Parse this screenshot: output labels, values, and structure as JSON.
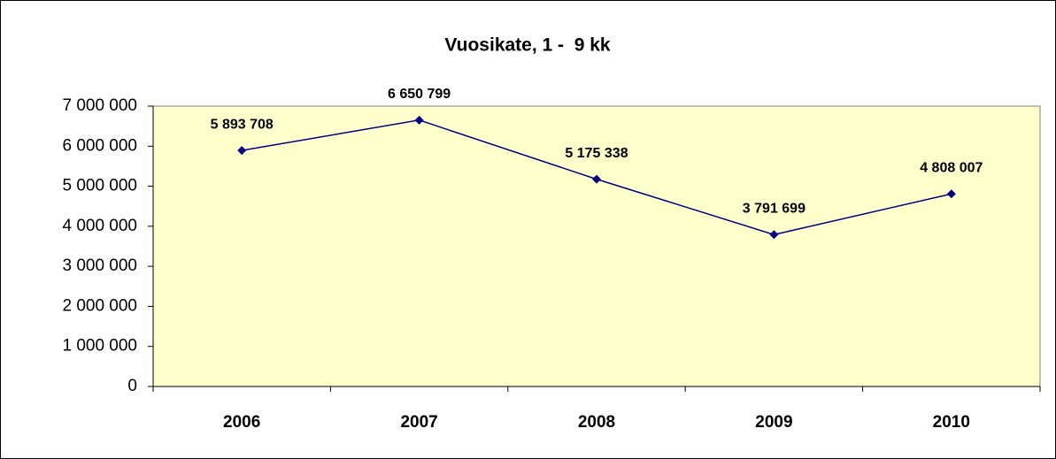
{
  "chart_data": {
    "type": "line",
    "title": "Vuosikate, 1 -  9 kk",
    "categories": [
      "2006",
      "2007",
      "2008",
      "2009",
      "2010"
    ],
    "series": [
      {
        "name": "Vuosikate",
        "color": "#000080",
        "values": [
          5893708,
          6650799,
          5175338,
          3791699,
          4808007
        ],
        "value_labels": [
          "5 893 708",
          "6 650 799",
          "5 175 338",
          "3 791 699",
          "4 808 007"
        ]
      }
    ],
    "ylim": [
      0,
      7000000
    ],
    "yticks": [
      0,
      {
        "value": 1000000,
        "label": "1 000 000"
      },
      {
        "value": 2000000,
        "label": "2 000 000"
      },
      {
        "value": 3000000,
        "label": "3 000 000"
      },
      {
        "value": 4000000,
        "label": "4 000 000"
      },
      {
        "value": 5000000,
        "label": "5 000 000"
      },
      {
        "value": 6000000,
        "label": "6 000 000"
      },
      {
        "value": 7000000,
        "label": "7 000 000"
      }
    ],
    "plot_background": "#ffffcc"
  }
}
